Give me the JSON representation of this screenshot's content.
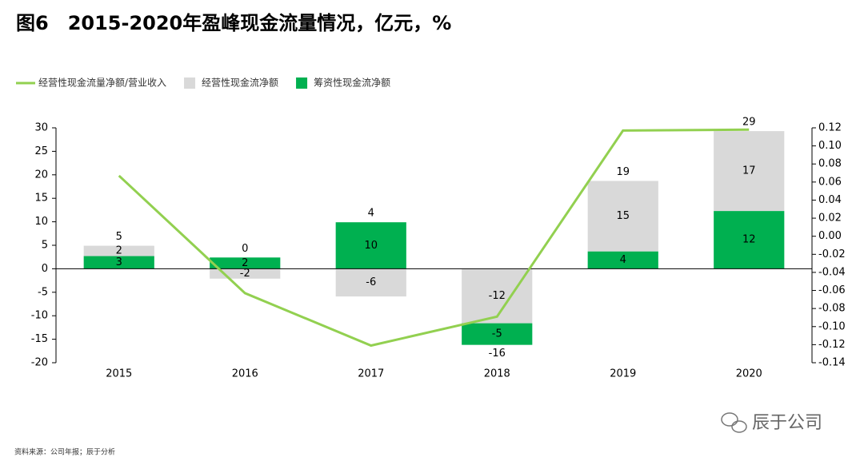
{
  "chart_data": {
    "type": "bar",
    "title": "图6　2015-2020年盈峰现金流量情况，亿元，%",
    "source": "资料来源：公司年报；辰于分析",
    "watermark": "辰于公司",
    "categories": [
      "2015",
      "2016",
      "2017",
      "2018",
      "2019",
      "2020"
    ],
    "series": [
      {
        "name": "经营性现金流量净额/营业收入",
        "type": "line",
        "axis": "y2",
        "color": "#92d050",
        "values": [
          0.067,
          -0.063,
          -0.121,
          -0.089,
          0.117,
          0.118
        ]
      },
      {
        "name": "经营性现金流净额",
        "type": "bar",
        "color": "#d9d9d9",
        "values": [
          2.2,
          -2.1,
          -5.9,
          -11.6,
          15.0,
          17.0
        ],
        "value_labels": [
          "2",
          "-2",
          "-6",
          "-12",
          "15",
          "17"
        ]
      },
      {
        "name": "筹资性现金流净额",
        "type": "bar",
        "color": "#00b050",
        "values": [
          2.7,
          2.4,
          9.9,
          -4.6,
          3.7,
          12.3
        ],
        "value_labels": [
          "3",
          "2",
          "10",
          "-5",
          "4",
          "12"
        ]
      }
    ],
    "total_labels": [
      "5",
      "0",
      "4",
      "-16",
      "19",
      "29"
    ],
    "ylim": [
      -20,
      30
    ],
    "yticks": [
      -20,
      -15,
      -10,
      -5,
      0,
      5,
      10,
      15,
      20,
      25,
      30
    ],
    "y2lim": [
      -0.14,
      0.12
    ],
    "y2ticks": [
      -0.14,
      -0.12,
      {
        "value": -0.1,
        "label": "-0.10"
      },
      -0.08,
      -0.06,
      -0.04,
      -0.02,
      {
        "value": 0,
        "label": "0.00"
      },
      0.02,
      0.04,
      0.06,
      0.08,
      {
        "value": 0.1,
        "label": "0.10"
      },
      0.12
    ]
  }
}
